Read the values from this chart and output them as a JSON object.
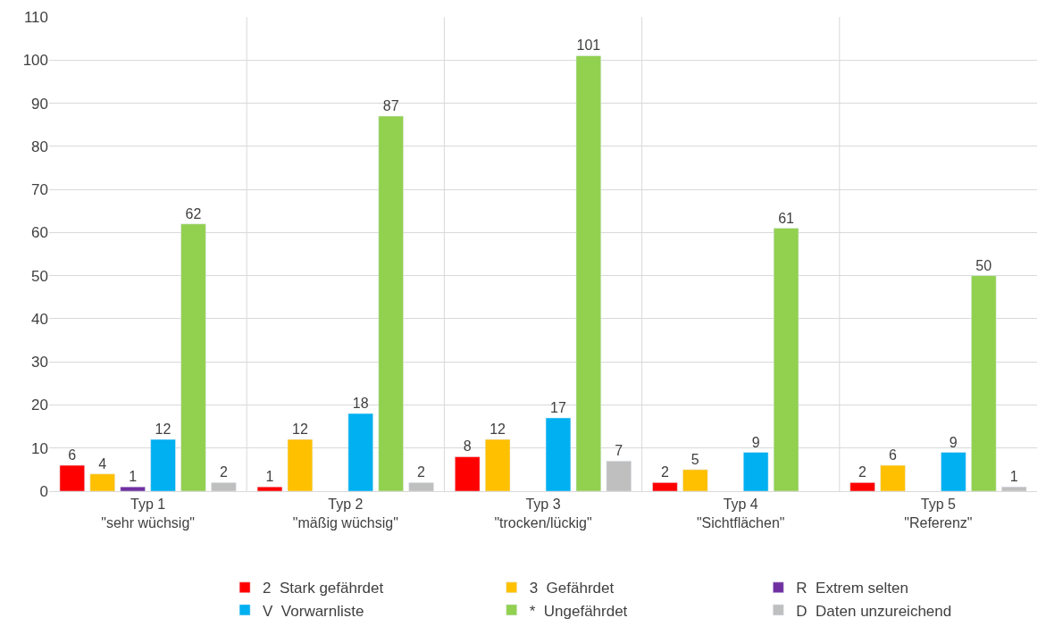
{
  "chart_data": {
    "type": "bar",
    "categories": [
      "Typ 1\n\"sehr wüchsig\"",
      "Typ 2\n\"mäßig wüchsig\"",
      "Typ 3\n\"trocken/lückig\"",
      "Typ 4\n\"Sichtflächen\"",
      "Typ 5\n\"Referenz\""
    ],
    "series": [
      {
        "name": "2  Stark gefährdet",
        "color": "#ff0000",
        "values": [
          6,
          1,
          8,
          2,
          2
        ]
      },
      {
        "name": "3  Gefährdet",
        "color": "#ffc000",
        "values": [
          4,
          12,
          12,
          5,
          6
        ]
      },
      {
        "name": "R  Extrem selten",
        "color": "#7030a0",
        "values": [
          1,
          null,
          null,
          null,
          null
        ]
      },
      {
        "name": "V  Vorwarnliste",
        "color": "#00b0f0",
        "values": [
          12,
          18,
          17,
          9,
          9
        ]
      },
      {
        "name": "*  Ungefährdet",
        "color": "#92d050",
        "values": [
          62,
          87,
          101,
          61,
          50
        ]
      },
      {
        "name": "D  Daten unzureichend",
        "color": "#bfbfbf",
        "values": [
          2,
          2,
          7,
          null,
          1
        ]
      }
    ],
    "ylim": [
      0,
      110
    ],
    "yticks": [
      0,
      10,
      20,
      30,
      40,
      50,
      60,
      70,
      80,
      90,
      100,
      110
    ],
    "grid": true,
    "legend": "bottom",
    "data_labels": true
  }
}
